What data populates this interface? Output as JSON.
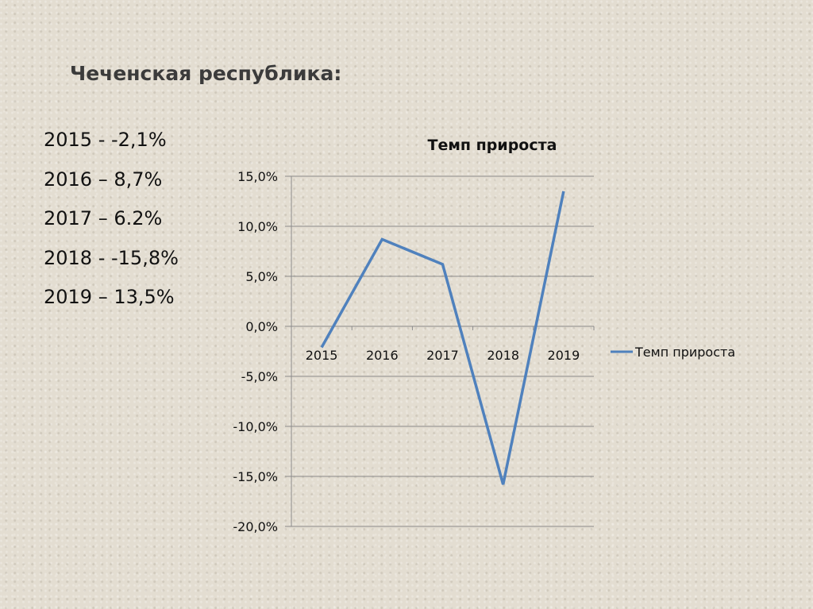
{
  "slide": {
    "title": "Чеченская республика:",
    "values": [
      "2015 - -2,1%",
      "2016 – 8,7%",
      "2017 – 6.2%",
      "2018 - -15,8%",
      "2019 – 13,5%"
    ]
  },
  "colors": {
    "background": "#e3ddd1",
    "series_line": "#4f81bd",
    "gridline": "#8c8c8c",
    "text": "#111111"
  },
  "chart_data": {
    "type": "line",
    "title": "Темп прироста",
    "categories": [
      "2015",
      "2016",
      "2017",
      "2018",
      "2019"
    ],
    "series": [
      {
        "name": "Темп прироста",
        "values": [
          -2.1,
          8.7,
          6.2,
          -15.8,
          13.5
        ]
      }
    ],
    "y_ticks": [
      "15,0%",
      "10,0%",
      "5,0%",
      "0,0%",
      "-5,0%",
      "-10,0%",
      "-15,0%",
      "-20,0%"
    ],
    "ylim": [
      -20,
      15
    ],
    "xlabel": "",
    "ylabel": "",
    "grid": true,
    "legend_position": "right"
  }
}
